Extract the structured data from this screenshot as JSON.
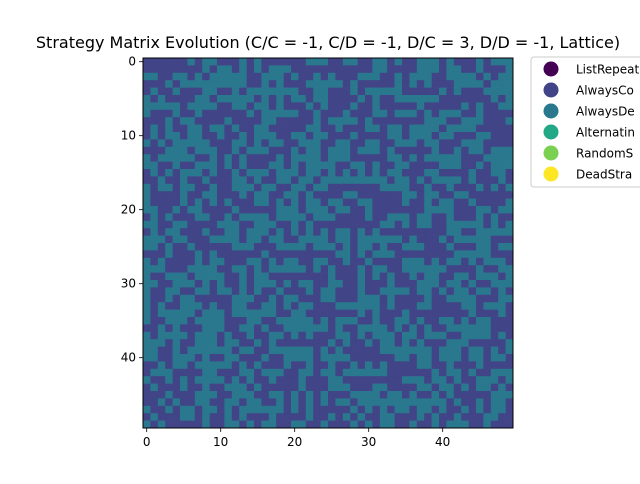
{
  "chart_data": {
    "type": "heatmap",
    "title": "Strategy Matrix Evolution (C/C = -1, C/D = -1, D/C = 3, D/D = -1, Lattice)",
    "xlabel": "",
    "ylabel": "",
    "grid_size": [
      50,
      50
    ],
    "xlim": [
      -0.5,
      49.5
    ],
    "ylim": [
      49.5,
      -0.5
    ],
    "xticks": [
      0,
      10,
      20,
      30,
      40
    ],
    "yticks": [
      0,
      10,
      20,
      30,
      40
    ],
    "grid": false,
    "legend_placement": "outside-right-top",
    "legend": [
      {
        "label": "ListRepeat",
        "color": "#440154"
      },
      {
        "label": "AlwaysCo",
        "color": "#414487"
      },
      {
        "label": "AlwaysDe",
        "color": "#2a788e"
      },
      {
        "label": "Alternatin",
        "color": "#22a884"
      },
      {
        "label": "RandomS",
        "color": "#7ad151"
      },
      {
        "label": "DeadStra",
        "color": "#fde725"
      }
    ],
    "cell_values_note": "cells take only two strategy indices (1 and 2) in a random mosaic",
    "present_strategy_indices": [
      1,
      2
    ]
  }
}
